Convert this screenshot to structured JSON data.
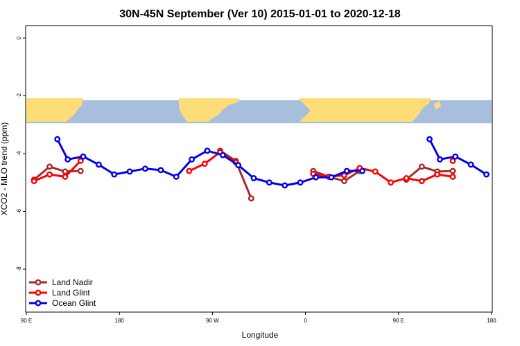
{
  "chart_data": {
    "type": "line",
    "title": "30N-45N September (Ver 10)   2015-01-01 to 2020-12-18",
    "xlabel": "Longitude",
    "ylabel": "XCO2 - MLO trend (ppm)",
    "xlim": [
      90,
      450
    ],
    "ylim": [
      -10,
      0.5
    ],
    "x_ticks": [
      {
        "value": 90,
        "label": "90 E"
      },
      {
        "value": 180,
        "label": "180"
      },
      {
        "value": 270,
        "label": "90 W"
      },
      {
        "value": 360,
        "label": "0"
      },
      {
        "value": 450,
        "label": "90 E"
      },
      {
        "value": 540,
        "label": "180"
      }
    ],
    "y_ticks": [
      {
        "value": 0,
        "label": "0"
      },
      {
        "value": -2,
        "label": "-2"
      },
      {
        "value": -4,
        "label": "-4"
      },
      {
        "value": -6,
        "label": "-6"
      },
      {
        "value": -8,
        "label": "-8"
      }
    ],
    "map_strip": {
      "y_top": -2.15,
      "y_bottom": -2.95,
      "ocean_color": "#a8bedd",
      "land_color": "#fedc78"
    },
    "legend": {
      "position": "bottom-left"
    },
    "series": [
      {
        "name": "Land Nadir",
        "color": "#a52a2a",
        "segments": [
          {
            "x": [
              97.5,
              112.5,
              127.5,
              142.5
            ],
            "y": [
              -4.9,
              -4.45,
              -4.62,
              -4.6
            ]
          },
          {
            "x": [
              277.5,
              292.5,
              307.5
            ],
            "y": [
              -3.9,
              -4.25,
              -5.55
            ]
          },
          {
            "x": [
              367.5,
              382.5,
              397.5,
              412.5
            ],
            "y": [
              -4.6,
              -4.8,
              -4.95,
              -4.6
            ]
          },
          {
            "x": [
              457.5,
              472.5,
              487.5,
              502.5
            ],
            "y": [
              -4.9,
              -4.45,
              -4.62,
              -4.6
            ]
          }
        ]
      },
      {
        "name": "Land Glint",
        "color": "#ff0000",
        "segments": [
          {
            "x": [
              97.5,
              112.5,
              127.5,
              142.5
            ],
            "y": [
              -4.95,
              -4.72,
              -4.8,
              -4.25
            ]
          },
          {
            "x": [
              247.5,
              262.5,
              277.5,
              292.5
            ],
            "y": [
              -4.6,
              -4.35,
              -3.95,
              -4.3
            ]
          },
          {
            "x": [
              367.5,
              382.5,
              397.5,
              412.5,
              427.5,
              442.5,
              457.5,
              472.5,
              487.5,
              502.5
            ],
            "y": [
              -4.7,
              -4.8,
              -4.75,
              -4.5,
              -4.62,
              -5.0,
              -4.85,
              -4.95,
              -4.72,
              -4.8
            ]
          },
          {
            "x": [
              502.5
            ],
            "y": [
              -4.25
            ]
          }
        ]
      },
      {
        "name": "Ocean Glint",
        "color": "#0000ee",
        "segments": [
          {
            "x": [
              120,
              130,
              145,
              160,
              175,
              190,
              205,
              220,
              235,
              250,
              265,
              280,
              295,
              310,
              325,
              340,
              355,
              370,
              385,
              400,
              415
            ],
            "y": [
              -3.5,
              -4.2,
              -4.1,
              -4.38,
              -4.72,
              -4.62,
              -4.52,
              -4.57,
              -4.8,
              -4.2,
              -3.9,
              -4.05,
              -4.4,
              -4.85,
              -5.0,
              -5.1,
              -5.0,
              -4.82,
              -4.82,
              -4.6,
              -4.6
            ]
          },
          {
            "x": [
              480,
              490,
              505,
              520,
              535
            ],
            "y": [
              -3.5,
              -4.2,
              -4.1,
              -4.38,
              -4.72
            ]
          }
        ]
      }
    ]
  }
}
